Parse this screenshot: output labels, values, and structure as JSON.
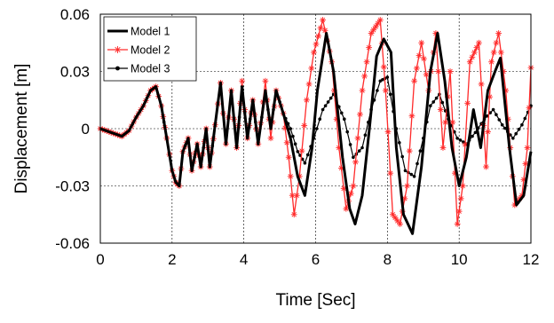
{
  "chart_data": {
    "type": "line",
    "xlabel": "Time [Sec]",
    "ylabel": "Displacement [m]",
    "xlim": [
      0,
      12
    ],
    "ylim": [
      -0.06,
      0.06
    ],
    "xticks": [
      0,
      2,
      4,
      6,
      8,
      10,
      12
    ],
    "yticks": [
      -0.06,
      -0.03,
      0,
      0.03,
      0.06
    ],
    "xtick_labels": [
      "0",
      "2",
      "4",
      "6",
      "8",
      "10",
      "12"
    ],
    "ytick_labels": [
      "-0.06",
      "-0.03",
      "0",
      "0.03",
      "0.06"
    ],
    "grid": true,
    "legend_position": "top-left",
    "series": [
      {
        "name": "Model 1",
        "color": "#000000",
        "marker": "none",
        "x": [
          0,
          0.3,
          0.6,
          0.8,
          1.0,
          1.2,
          1.4,
          1.55,
          1.7,
          1.85,
          2.0,
          2.1,
          2.2,
          2.3,
          2.45,
          2.55,
          2.7,
          2.8,
          2.95,
          3.05,
          3.2,
          3.35,
          3.5,
          3.65,
          3.8,
          3.95,
          4.1,
          4.25,
          4.4,
          4.6,
          4.75,
          4.9,
          5.1,
          5.3,
          5.5,
          5.7,
          5.9,
          6.05,
          6.3,
          6.5,
          6.75,
          6.95,
          7.1,
          7.3,
          7.5,
          7.7,
          7.9,
          8.1,
          8.25,
          8.45,
          8.7,
          8.95,
          9.2,
          9.4,
          9.6,
          9.8,
          10.0,
          10.2,
          10.4,
          10.6,
          10.8,
          11.0,
          11.15,
          11.4,
          11.6,
          11.8,
          12.0
        ],
        "y": [
          0,
          -0.002,
          -0.004,
          -0.001,
          0.006,
          0.012,
          0.02,
          0.022,
          0.012,
          -0.005,
          -0.022,
          -0.028,
          -0.03,
          -0.012,
          -0.005,
          -0.022,
          -0.008,
          -0.02,
          0.0,
          -0.02,
          0.002,
          0.024,
          -0.008,
          0.02,
          -0.01,
          0.022,
          -0.005,
          0.015,
          -0.008,
          0.02,
          0.0,
          0.02,
          0.008,
          -0.005,
          -0.025,
          -0.035,
          -0.01,
          0.02,
          0.05,
          0.03,
          -0.015,
          -0.042,
          -0.05,
          -0.035,
          0.0,
          0.038,
          0.047,
          0.04,
          -0.01,
          -0.045,
          -0.055,
          -0.02,
          0.03,
          0.05,
          0.025,
          -0.01,
          -0.03,
          -0.015,
          0.01,
          -0.01,
          0.02,
          0.03,
          0.037,
          -0.01,
          -0.04,
          -0.035,
          -0.012
        ]
      },
      {
        "name": "Model 2",
        "color": "#ff2a2a",
        "marker": "asterisk",
        "x": [
          0,
          0.3,
          0.6,
          0.8,
          1.0,
          1.2,
          1.4,
          1.55,
          1.7,
          1.85,
          2.0,
          2.1,
          2.2,
          2.3,
          2.45,
          2.55,
          2.7,
          2.8,
          2.95,
          3.05,
          3.2,
          3.35,
          3.5,
          3.65,
          3.8,
          3.95,
          4.1,
          4.25,
          4.4,
          4.6,
          4.75,
          4.9,
          5.1,
          5.25,
          5.4,
          5.55,
          5.75,
          5.95,
          6.2,
          6.45,
          6.65,
          6.85,
          7.05,
          7.3,
          7.55,
          7.8,
          7.95,
          8.15,
          8.35,
          8.55,
          8.75,
          8.95,
          9.15,
          9.35,
          9.55,
          9.75,
          9.95,
          10.1,
          10.3,
          10.55,
          10.75,
          10.9,
          11.1,
          11.3,
          11.55,
          11.75,
          11.9,
          12.0
        ],
        "y": [
          0,
          -0.002,
          -0.004,
          -0.001,
          0.006,
          0.012,
          0.02,
          0.022,
          0.012,
          -0.005,
          -0.022,
          -0.028,
          -0.03,
          -0.012,
          -0.005,
          -0.022,
          -0.008,
          -0.02,
          0.0,
          -0.02,
          0.002,
          0.024,
          -0.008,
          0.02,
          -0.01,
          0.025,
          -0.005,
          0.015,
          -0.008,
          0.025,
          -0.005,
          0.02,
          0.008,
          -0.015,
          -0.045,
          -0.025,
          0.015,
          0.04,
          0.057,
          0.035,
          -0.01,
          -0.042,
          -0.03,
          0.02,
          0.05,
          0.057,
          0.02,
          -0.045,
          -0.05,
          -0.03,
          0.025,
          0.045,
          0.02,
          0.05,
          -0.01,
          0.03,
          -0.05,
          -0.03,
          0.035,
          0.045,
          -0.02,
          0.035,
          0.05,
          0.02,
          -0.04,
          -0.035,
          -0.01,
          0.032
        ]
      },
      {
        "name": "Model 3",
        "color": "#000000",
        "marker": "dot",
        "x": [
          0,
          0.3,
          0.6,
          0.8,
          1.0,
          1.2,
          1.4,
          1.55,
          1.7,
          1.85,
          2.0,
          2.1,
          2.2,
          2.3,
          2.45,
          2.55,
          2.7,
          2.8,
          2.95,
          3.05,
          3.2,
          3.35,
          3.5,
          3.65,
          3.8,
          3.95,
          4.1,
          4.25,
          4.4,
          4.6,
          4.75,
          4.9,
          5.1,
          5.3,
          5.5,
          5.7,
          5.95,
          6.2,
          6.5,
          6.8,
          7.05,
          7.3,
          7.55,
          7.8,
          8.0,
          8.25,
          8.5,
          8.75,
          9.0,
          9.2,
          9.45,
          9.7,
          9.95,
          10.2,
          10.45,
          10.7,
          10.95,
          11.2,
          11.5,
          11.75,
          12.0
        ],
        "y": [
          0,
          -0.002,
          -0.004,
          -0.001,
          0.006,
          0.012,
          0.02,
          0.022,
          0.012,
          -0.005,
          -0.022,
          -0.028,
          -0.03,
          -0.012,
          -0.005,
          -0.022,
          -0.008,
          -0.02,
          0.0,
          -0.02,
          0.002,
          0.024,
          -0.008,
          0.02,
          -0.01,
          0.022,
          -0.005,
          0.015,
          -0.008,
          0.02,
          0.0,
          0.02,
          0.008,
          0.0,
          -0.012,
          -0.018,
          -0.005,
          0.01,
          0.018,
          0.005,
          -0.015,
          -0.01,
          0.01,
          0.025,
          0.027,
          0.0,
          -0.022,
          -0.025,
          -0.005,
          0.012,
          0.018,
          0.005,
          -0.005,
          -0.008,
          -0.002,
          0.005,
          0.01,
          0.002,
          -0.005,
          0.002,
          0.012
        ]
      }
    ]
  }
}
